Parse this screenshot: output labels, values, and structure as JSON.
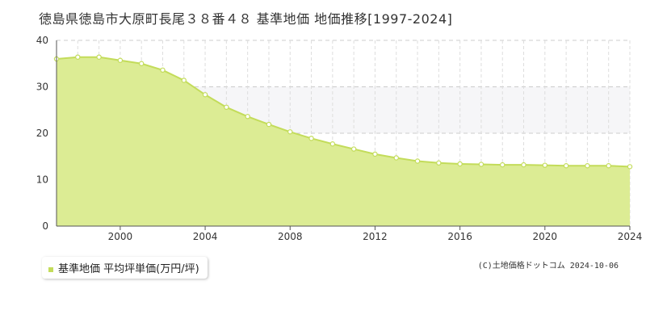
{
  "title": "徳島県徳島市大原町長尾３８番４８ 基準地価 地価推移[1997-2024]",
  "legend": {
    "label": "基準地価 平均坪単価(万円/坪)"
  },
  "credit": "(C)土地価格ドットコム 2024-10-06",
  "colors": {
    "fill": "#dcec94",
    "line": "#c3dc5a",
    "marker_fill": "#ffffff",
    "legend_marker": "#c3dc5a",
    "band": "#f6f6f8",
    "grid": "#cccccc"
  },
  "chart_data": {
    "type": "area",
    "title": "徳島県徳島市大原町長尾３８番４８ 基準地価 地価推移[1997-2024]",
    "xlabel": "",
    "ylabel": "",
    "xlim": [
      1997,
      2024
    ],
    "ylim": [
      0,
      40
    ],
    "yticks": [
      0,
      10,
      20,
      30,
      40
    ],
    "xticks": [
      2000,
      2004,
      2008,
      2012,
      2016,
      2020,
      2024
    ],
    "grid": true,
    "legend_position": "bottom-left",
    "series": [
      {
        "name": "基準地価 平均坪単価(万円/坪)",
        "x": [
          1997,
          1998,
          1999,
          2000,
          2001,
          2002,
          2003,
          2004,
          2005,
          2006,
          2007,
          2008,
          2009,
          2010,
          2011,
          2012,
          2013,
          2014,
          2015,
          2016,
          2017,
          2018,
          2019,
          2020,
          2021,
          2022,
          2023,
          2024
        ],
        "values": [
          36.0,
          36.4,
          36.4,
          35.7,
          35.0,
          33.6,
          31.4,
          28.3,
          25.6,
          23.6,
          21.9,
          20.3,
          18.9,
          17.7,
          16.6,
          15.5,
          14.7,
          14.0,
          13.6,
          13.4,
          13.3,
          13.2,
          13.2,
          13.1,
          13.0,
          13.0,
          13.0,
          12.8
        ]
      }
    ]
  }
}
